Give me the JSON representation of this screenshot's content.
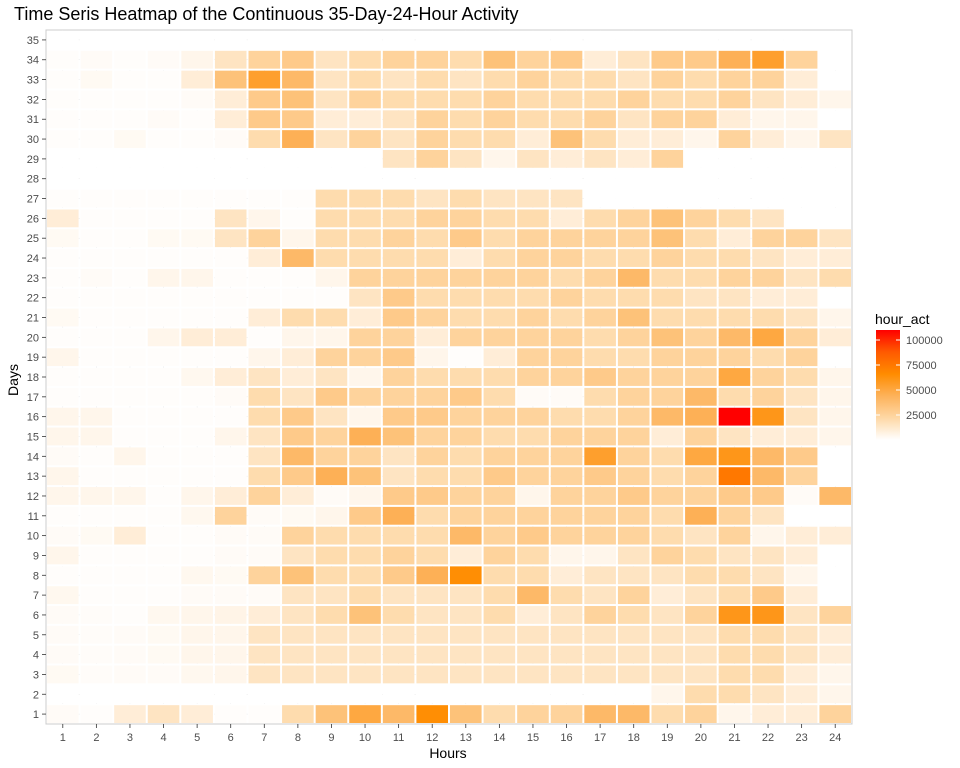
{
  "chart_data": {
    "type": "heatmap",
    "title": "Time Seris Heatmap of the Continuous 35-Day-24-Hour Activity",
    "xlabel": "Hours",
    "ylabel": "Days",
    "x_categories": [
      "1",
      "2",
      "3",
      "4",
      "5",
      "6",
      "7",
      "8",
      "9",
      "10",
      "11",
      "12",
      "13",
      "14",
      "15",
      "16",
      "17",
      "18",
      "19",
      "20",
      "21",
      "22",
      "23",
      "24"
    ],
    "y_categories": [
      "1",
      "2",
      "3",
      "4",
      "5",
      "6",
      "7",
      "8",
      "9",
      "10",
      "11",
      "12",
      "13",
      "14",
      "15",
      "16",
      "17",
      "18",
      "19",
      "20",
      "21",
      "22",
      "23",
      "24",
      "25",
      "26",
      "27",
      "28",
      "29",
      "30",
      "31",
      "32",
      "33",
      "34",
      "35"
    ],
    "legend": {
      "title": "hour_act",
      "ticks": [
        25000,
        50000,
        75000,
        100000
      ],
      "tick_labels": [
        "25000",
        "50000",
        "75000",
        "100000"
      ],
      "range": [
        0,
        110000
      ],
      "colors": [
        "#ffffff",
        "#fed8a6",
        "#fdb25a",
        "#ff8c00",
        "#ff5a00",
        "#ff0000"
      ],
      "position": "right"
    },
    "grid": true,
    "values": [
      [
        2000,
        1000,
        10000,
        15000,
        10000,
        1000,
        1000,
        20000,
        35000,
        50000,
        40000,
        65000,
        35000,
        20000,
        25000,
        25000,
        40000,
        40000,
        20000,
        25000,
        5000,
        10000,
        10000,
        25000
      ],
      [
        0,
        0,
        0,
        0,
        0,
        0,
        0,
        0,
        0,
        0,
        0,
        0,
        0,
        0,
        0,
        0,
        0,
        0,
        5000,
        20000,
        20000,
        15000,
        10000,
        5000
      ],
      [
        3000,
        1500,
        2000,
        2000,
        4000,
        5000,
        15000,
        15000,
        15000,
        15000,
        15000,
        15000,
        15000,
        15000,
        15000,
        15000,
        15000,
        15000,
        15000,
        15000,
        20000,
        20000,
        10000,
        5000
      ],
      [
        2000,
        1500,
        2000,
        3000,
        5000,
        5000,
        15000,
        15000,
        15000,
        15000,
        15000,
        15000,
        15000,
        15000,
        15000,
        15000,
        15000,
        15000,
        15000,
        15000,
        20000,
        20000,
        15000,
        10000
      ],
      [
        2000,
        1500,
        2000,
        3000,
        5000,
        5000,
        15000,
        15000,
        15000,
        15000,
        15000,
        15000,
        15000,
        15000,
        15000,
        15000,
        15000,
        15000,
        15000,
        15000,
        20000,
        20000,
        15000,
        10000
      ],
      [
        2000,
        1500,
        1000,
        4000,
        5000,
        6000,
        10000,
        15000,
        20000,
        35000,
        20000,
        15000,
        15000,
        20000,
        10000,
        15000,
        25000,
        20000,
        15000,
        25000,
        60000,
        60000,
        15000,
        25000
      ],
      [
        4000,
        1000,
        1000,
        1000,
        2000,
        2000,
        2000,
        15000,
        15000,
        20000,
        15000,
        15000,
        15000,
        20000,
        40000,
        20000,
        15000,
        25000,
        10000,
        15000,
        20000,
        30000,
        10000,
        0
      ],
      [
        1000,
        1000,
        1000,
        1000,
        4000,
        3000,
        25000,
        35000,
        20000,
        20000,
        30000,
        45000,
        65000,
        20000,
        20000,
        10000,
        15000,
        15000,
        15000,
        20000,
        20000,
        15000,
        5000,
        0
      ],
      [
        5000,
        1000,
        1000,
        1000,
        1000,
        2000,
        2000,
        15000,
        20000,
        20000,
        25000,
        20000,
        10000,
        25000,
        20000,
        5000,
        5000,
        15000,
        25000,
        20000,
        15000,
        15000,
        10000,
        0
      ],
      [
        2000,
        3000,
        10000,
        1000,
        1000,
        2000,
        2000,
        25000,
        20000,
        20000,
        20000,
        20000,
        40000,
        25000,
        30000,
        25000,
        25000,
        25000,
        20000,
        15000,
        25000,
        5000,
        10000,
        10000
      ],
      [
        1000,
        1000,
        1000,
        1000,
        4000,
        25000,
        2000,
        3000,
        5000,
        30000,
        45000,
        20000,
        25000,
        25000,
        25000,
        25000,
        25000,
        25000,
        20000,
        45000,
        25000,
        15000,
        0,
        0
      ],
      [
        5000,
        5000,
        5000,
        1000,
        5000,
        10000,
        25000,
        10000,
        2000,
        5000,
        30000,
        30000,
        25000,
        25000,
        5000,
        25000,
        25000,
        30000,
        25000,
        25000,
        30000,
        30000,
        2000,
        40000
      ],
      [
        5000,
        1000,
        1000,
        1000,
        1000,
        1000,
        20000,
        30000,
        45000,
        35000,
        15000,
        20000,
        20000,
        30000,
        25000,
        25000,
        30000,
        25000,
        20000,
        25000,
        75000,
        40000,
        25000,
        0
      ],
      [
        2000,
        1000,
        5000,
        1000,
        1000,
        1000,
        15000,
        40000,
        25000,
        25000,
        15000,
        25000,
        20000,
        25000,
        25000,
        25000,
        55000,
        25000,
        20000,
        50000,
        60000,
        40000,
        30000,
        0
      ],
      [
        5000,
        5000,
        1000,
        1000,
        1000,
        5000,
        15000,
        30000,
        25000,
        45000,
        35000,
        25000,
        25000,
        20000,
        20000,
        25000,
        25000,
        25000,
        10000,
        25000,
        15000,
        10000,
        10000,
        5000
      ],
      [
        5000,
        5000,
        1000,
        1000,
        1000,
        1000,
        20000,
        30000,
        15000,
        5000,
        30000,
        30000,
        25000,
        25000,
        25000,
        20000,
        20000,
        25000,
        40000,
        45000,
        110000,
        60000,
        15000,
        5000
      ],
      [
        1000,
        1000,
        1000,
        1000,
        1000,
        2000,
        20000,
        15000,
        30000,
        25000,
        25000,
        25000,
        30000,
        20000,
        2000,
        2000,
        20000,
        25000,
        25000,
        40000,
        20000,
        25000,
        15000,
        5000
      ],
      [
        1000,
        1000,
        1000,
        1000,
        4000,
        10000,
        15000,
        10000,
        15000,
        5000,
        25000,
        20000,
        20000,
        20000,
        25000,
        25000,
        30000,
        25000,
        25000,
        25000,
        50000,
        25000,
        20000,
        5000
      ],
      [
        5000,
        1000,
        1000,
        1000,
        1000,
        1000,
        5000,
        10000,
        25000,
        25000,
        30000,
        5000,
        1000,
        10000,
        25000,
        25000,
        20000,
        20000,
        25000,
        25000,
        25000,
        20000,
        25000,
        0
      ],
      [
        1000,
        1000,
        1000,
        5000,
        10000,
        10000,
        1000,
        5000,
        5000,
        25000,
        25000,
        10000,
        25000,
        25000,
        25000,
        25000,
        20000,
        25000,
        35000,
        25000,
        40000,
        50000,
        25000,
        10000
      ],
      [
        3000,
        1000,
        1000,
        1000,
        1000,
        1000,
        10000,
        20000,
        20000,
        10000,
        30000,
        25000,
        20000,
        20000,
        25000,
        20000,
        25000,
        35000,
        20000,
        20000,
        20000,
        20000,
        15000,
        5000
      ],
      [
        1000,
        1000,
        1000,
        1000,
        1000,
        1000,
        1000,
        1000,
        1000,
        15000,
        30000,
        20000,
        20000,
        20000,
        20000,
        25000,
        20000,
        20000,
        20000,
        15000,
        15000,
        10000,
        10000,
        0
      ],
      [
        1000,
        2000,
        1000,
        5000,
        5000,
        1000,
        1000,
        1000,
        5000,
        25000,
        25000,
        25000,
        25000,
        25000,
        25000,
        20000,
        25000,
        40000,
        20000,
        20000,
        25000,
        25000,
        15000,
        20000
      ],
      [
        1000,
        1000,
        1000,
        1000,
        1000,
        1000,
        10000,
        40000,
        20000,
        20000,
        20000,
        20000,
        10000,
        20000,
        25000,
        25000,
        20000,
        20000,
        25000,
        20000,
        20000,
        15000,
        10000,
        10000
      ],
      [
        3000,
        1000,
        1000,
        3000,
        3000,
        15000,
        25000,
        5000,
        20000,
        20000,
        25000,
        20000,
        30000,
        20000,
        25000,
        25000,
        25000,
        25000,
        35000,
        20000,
        10000,
        25000,
        25000,
        15000
      ],
      [
        10000,
        1000,
        1000,
        1000,
        1000,
        15000,
        5000,
        1000,
        20000,
        20000,
        20000,
        25000,
        25000,
        20000,
        20000,
        10000,
        20000,
        25000,
        35000,
        25000,
        20000,
        15000,
        0,
        0
      ],
      [
        1000,
        1000,
        1000,
        1000,
        1000,
        1000,
        1000,
        1000,
        20000,
        20000,
        20000,
        15000,
        20000,
        15000,
        15000,
        15000,
        0,
        0,
        0,
        0,
        0,
        0,
        0,
        0
      ],
      [
        0,
        0,
        0,
        0,
        0,
        0,
        0,
        0,
        0,
        0,
        0,
        0,
        0,
        0,
        0,
        0,
        0,
        0,
        0,
        0,
        0,
        0,
        0,
        0
      ],
      [
        0,
        0,
        0,
        0,
        0,
        0,
        0,
        0,
        0,
        0,
        15000,
        25000,
        15000,
        5000,
        15000,
        10000,
        15000,
        10000,
        25000,
        0,
        0,
        0,
        0,
        0
      ],
      [
        1000,
        1000,
        3000,
        1000,
        1000,
        2000,
        20000,
        45000,
        15000,
        25000,
        15000,
        25000,
        20000,
        20000,
        10000,
        35000,
        20000,
        10000,
        10000,
        5000,
        25000,
        10000,
        5000,
        15000
      ],
      [
        1000,
        1000,
        1000,
        2000,
        1000,
        10000,
        30000,
        30000,
        10000,
        10000,
        15000,
        25000,
        20000,
        25000,
        20000,
        20000,
        25000,
        15000,
        25000,
        25000,
        10000,
        5000,
        5000,
        0
      ],
      [
        1000,
        1000,
        1000,
        1000,
        2000,
        10000,
        30000,
        35000,
        15000,
        25000,
        20000,
        20000,
        20000,
        25000,
        20000,
        20000,
        20000,
        25000,
        20000,
        20000,
        25000,
        15000,
        10000,
        5000
      ],
      [
        1000,
        3000,
        1000,
        1000,
        10000,
        35000,
        55000,
        40000,
        15000,
        20000,
        15000,
        20000,
        15000,
        20000,
        25000,
        20000,
        20000,
        15000,
        25000,
        20000,
        25000,
        25000,
        10000,
        0
      ],
      [
        1000,
        2000,
        1000,
        2000,
        5000,
        15000,
        25000,
        30000,
        15000,
        20000,
        25000,
        25000,
        20000,
        35000,
        25000,
        30000,
        10000,
        15000,
        30000,
        30000,
        45000,
        55000,
        25000,
        0
      ],
      [
        0,
        0,
        0,
        0,
        0,
        0,
        0,
        0,
        0,
        0,
        0,
        0,
        0,
        0,
        0,
        0,
        0,
        0,
        0,
        0,
        0,
        0,
        0,
        0
      ]
    ]
  }
}
